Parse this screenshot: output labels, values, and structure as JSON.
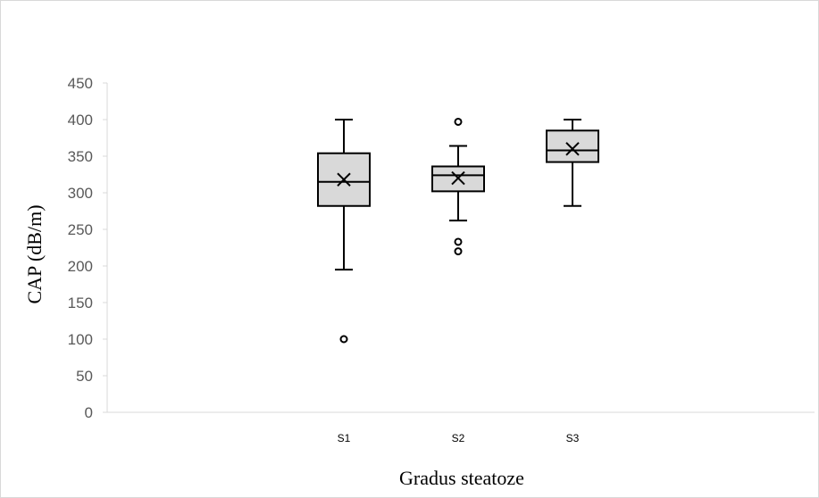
{
  "chart_data": {
    "type": "box",
    "title": "",
    "xlabel": "Gradus steatoze",
    "ylabel": "CAP (dB/m)",
    "ylim": [
      0,
      450
    ],
    "yticks": [
      0,
      50,
      100,
      150,
      200,
      250,
      300,
      350,
      400,
      450
    ],
    "categories": [
      "S1",
      "S2",
      "S3"
    ],
    "boxes": [
      {
        "category": "S1",
        "min": 195,
        "q1": 282,
        "median": 315,
        "q3": 354,
        "max": 400,
        "mean": 318,
        "outliers": [
          100
        ]
      },
      {
        "category": "S2",
        "min": 262,
        "q1": 302,
        "median": 324,
        "q3": 336,
        "max": 364,
        "mean": 320,
        "outliers": [
          397,
          233,
          220
        ]
      },
      {
        "category": "S3",
        "min": 282,
        "q1": 342,
        "median": 358,
        "q3": 385,
        "max": 400,
        "mean": 360,
        "outliers": []
      }
    ],
    "grid": false,
    "legend": "none",
    "box_fill": "#d9d9d9",
    "line_color": "#000000"
  }
}
